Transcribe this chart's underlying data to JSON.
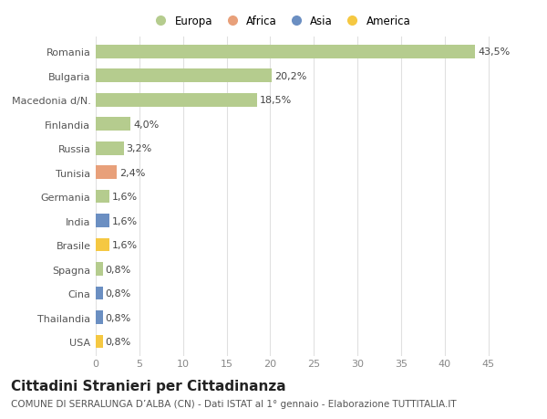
{
  "categories": [
    "Romania",
    "Bulgaria",
    "Macedonia d/N.",
    "Finlandia",
    "Russia",
    "Tunisia",
    "Germania",
    "India",
    "Brasile",
    "Spagna",
    "Cina",
    "Thailandia",
    "USA"
  ],
  "values": [
    43.5,
    20.2,
    18.5,
    4.0,
    3.2,
    2.4,
    1.6,
    1.6,
    1.6,
    0.8,
    0.8,
    0.8,
    0.8
  ],
  "labels": [
    "43,5%",
    "20,2%",
    "18,5%",
    "4,0%",
    "3,2%",
    "2,4%",
    "1,6%",
    "1,6%",
    "1,6%",
    "0,8%",
    "0,8%",
    "0,8%",
    "0,8%"
  ],
  "bar_colors": [
    "#b5cc8e",
    "#b5cc8e",
    "#b5cc8e",
    "#b5cc8e",
    "#b5cc8e",
    "#e8a07a",
    "#b5cc8e",
    "#6b8fc2",
    "#f5c842",
    "#b5cc8e",
    "#6b8fc2",
    "#6b8fc2",
    "#f5c842"
  ],
  "legend_labels": [
    "Europa",
    "Africa",
    "Asia",
    "America"
  ],
  "legend_colors": [
    "#b5cc8e",
    "#e8a07a",
    "#6b8fc2",
    "#f5c842"
  ],
  "title": "Cittadini Stranieri per Cittadinanza",
  "subtitle": "COMUNE DI SERRALUNGA D’ALBA (CN) - Dati ISTAT al 1° gennaio - Elaborazione TUTTITALIA.IT",
  "xlim": [
    0,
    47
  ],
  "xticks": [
    0,
    5,
    10,
    15,
    20,
    25,
    30,
    35,
    40,
    45
  ],
  "bg_color": "#ffffff",
  "grid_color": "#e0e0e0",
  "label_fontsize": 8,
  "tick_fontsize": 8,
  "ytick_fontsize": 8,
  "title_fontsize": 11,
  "subtitle_fontsize": 7.5,
  "bar_height": 0.55
}
